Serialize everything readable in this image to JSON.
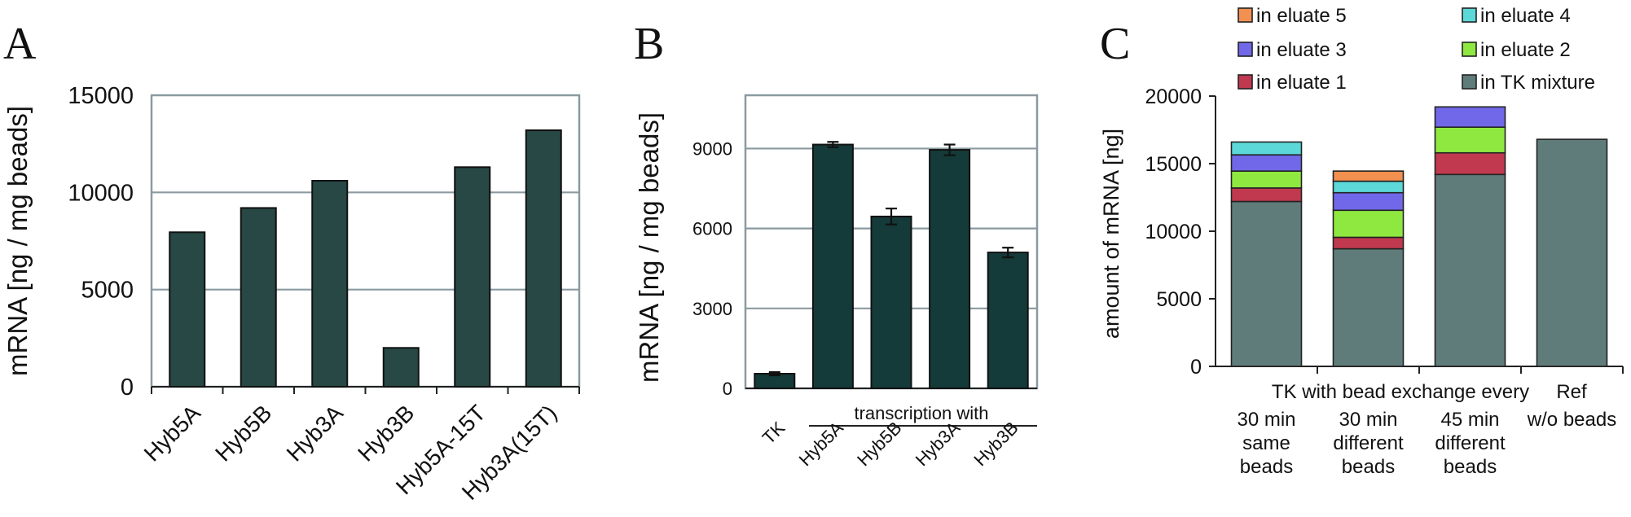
{
  "panels": {
    "a": {
      "letter": "A",
      "ylabel": "mRNA [ng / mg beads]"
    },
    "b": {
      "letter": "B",
      "ylabel": "mRNA [ng / mg beads]",
      "group_label": "transcription with"
    },
    "c": {
      "letter": "C",
      "ylabel": "amount of mRNA [ng]",
      "header_left": "TK with bead exchange every",
      "header_right": "Ref",
      "category_lines": [
        [
          "30 min",
          "same",
          "beads"
        ],
        [
          "30 min",
          "different",
          "beads"
        ],
        [
          "45 min",
          "different",
          "beads"
        ],
        [
          "w/o beads"
        ]
      ]
    }
  },
  "colors": {
    "bar_a": "#274845",
    "bar_b": "#143a39",
    "grid": "#8a9aa0",
    "tk_mixture": "#5f7c7a",
    "eluate1": "#c0394f",
    "eluate2": "#8fe840",
    "eluate3": "#7068e8",
    "eluate4": "#5cd8d8",
    "eluate5": "#f29050"
  },
  "chart_data": [
    {
      "type": "bar",
      "panel": "A",
      "categories": [
        "Hyb5A",
        "Hyb5B",
        "Hyb3A",
        "Hyb3B",
        "Hyb5A-15T",
        "Hyb3A(15T)"
      ],
      "values": [
        7950,
        9200,
        10600,
        2000,
        11300,
        13200
      ],
      "ylabel": "mRNA [ng / mg beads]",
      "ylim": [
        0,
        15000
      ],
      "yticks": [
        0,
        5000,
        10000,
        15000
      ],
      "grid": true
    },
    {
      "type": "bar",
      "panel": "B",
      "categories": [
        "TK",
        "Hyb5A",
        "Hyb5B",
        "Hyb3A",
        "Hyb3B"
      ],
      "values": [
        550,
        9150,
        6450,
        8950,
        5100
      ],
      "errors": [
        60,
        100,
        300,
        200,
        180
      ],
      "ylabel": "mRNA [ng / mg beads]",
      "ylim": [
        0,
        11000
      ],
      "yticks": [
        0,
        3000,
        6000,
        9000
      ],
      "grid": true
    },
    {
      "type": "bar",
      "stacked": true,
      "panel": "C",
      "categories": [
        "30 min same beads",
        "30 min different beads",
        "45 min different beads",
        "Ref w/o beads"
      ],
      "ylabel": "amount of mRNA [ng]",
      "ylim": [
        0,
        20000
      ],
      "yticks": [
        0,
        5000,
        10000,
        15000,
        20000
      ],
      "grid": false,
      "legend_position": "top",
      "series": [
        {
          "name": "in TK mixture",
          "color_key": "tk_mixture",
          "values": [
            12200,
            8700,
            14200,
            16800
          ]
        },
        {
          "name": "in eluate 1",
          "color_key": "eluate1",
          "values": [
            1000,
            850,
            1600,
            0
          ]
        },
        {
          "name": "in eluate 2",
          "color_key": "eluate2",
          "values": [
            1250,
            2000,
            1900,
            0
          ]
        },
        {
          "name": "in eluate 3",
          "color_key": "eluate3",
          "values": [
            1200,
            1300,
            1500,
            0
          ]
        },
        {
          "name": "in eluate 4",
          "color_key": "eluate4",
          "values": [
            950,
            850,
            0,
            0
          ]
        },
        {
          "name": "in eluate 5",
          "color_key": "eluate5",
          "values": [
            0,
            750,
            0,
            0
          ]
        }
      ],
      "legend_order": [
        5,
        4,
        3,
        2,
        1,
        0
      ]
    }
  ]
}
